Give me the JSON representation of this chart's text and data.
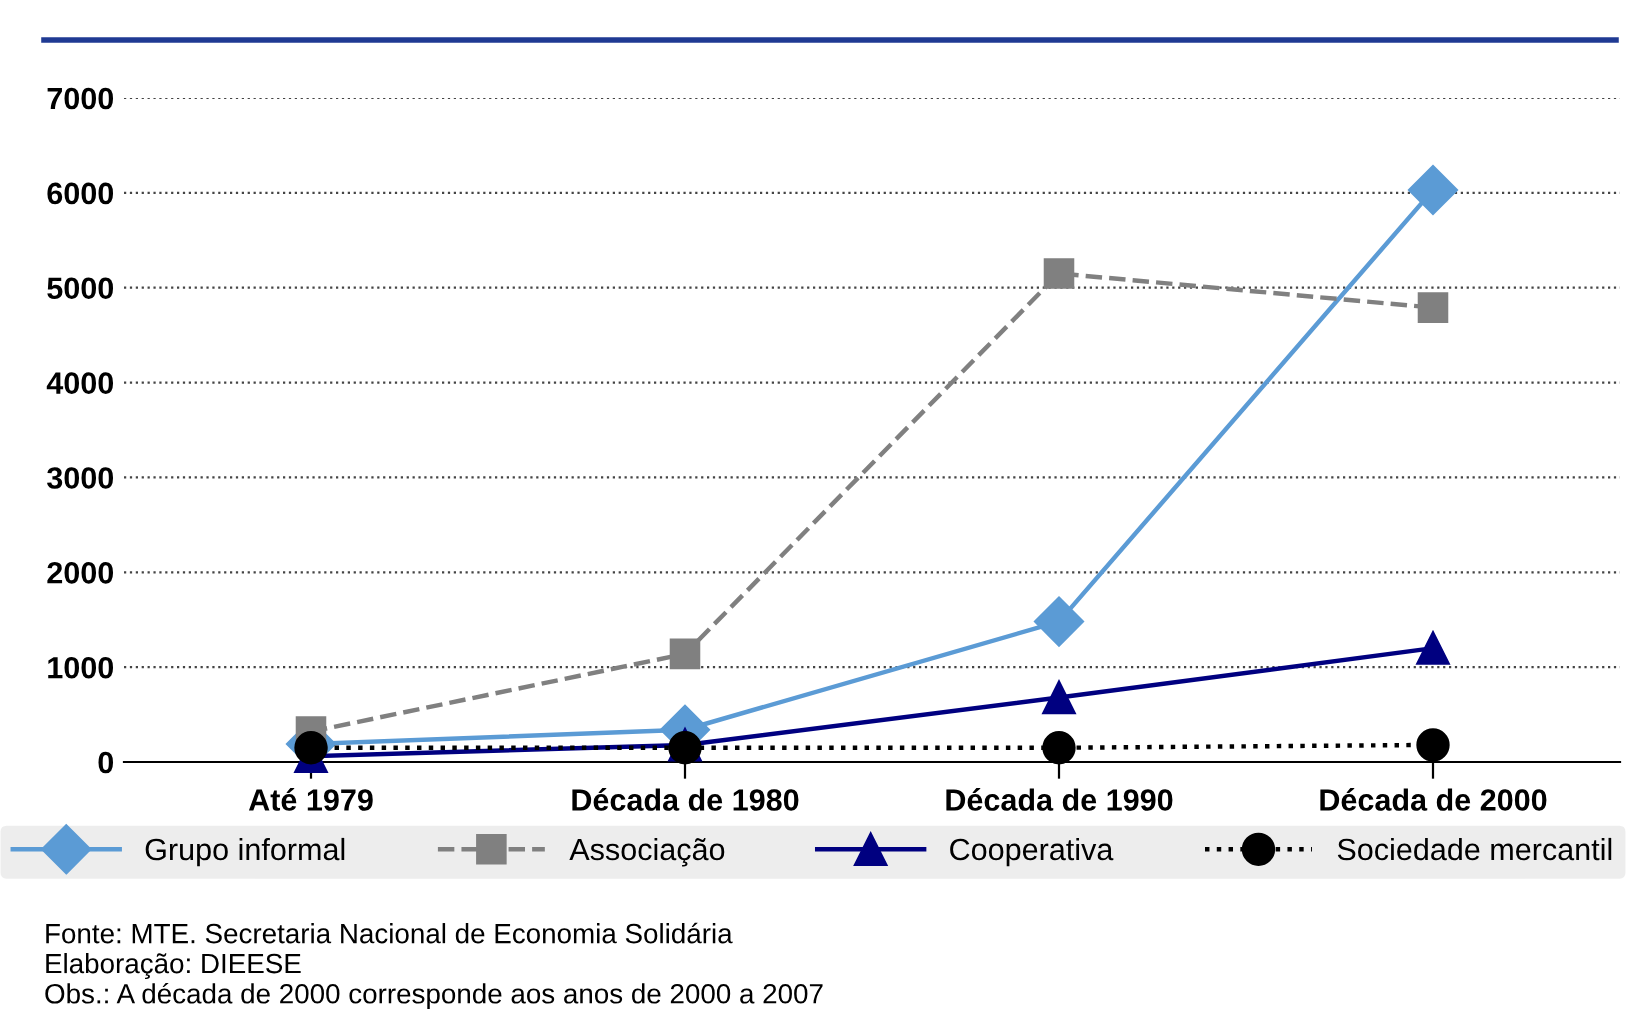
{
  "chart_data": {
    "type": "line",
    "categories": [
      "Até 1979",
      "Década de 1980",
      "Década de 1990",
      "Década de 2000"
    ],
    "series": [
      {
        "name": "Grupo informal",
        "color": "#5b9bd5",
        "values": [
          190,
          340,
          1480,
          6030
        ],
        "marker": "diamond",
        "line_style": "solid"
      },
      {
        "name": "Associação",
        "color": "#808080",
        "values": [
          320,
          1140,
          5150,
          4790
        ],
        "marker": "square",
        "line_style": "dashed"
      },
      {
        "name": "Cooperativa",
        "color": "#000080",
        "values": [
          60,
          180,
          680,
          1200
        ],
        "marker": "triangle",
        "line_style": "solid"
      },
      {
        "name": "Sociedade mercantil",
        "color": "#000000",
        "values": [
          150,
          150,
          150,
          180
        ],
        "marker": "circle",
        "line_style": "dotted"
      }
    ],
    "ylim": [
      0,
      7000
    ],
    "yticks": [
      0,
      1000,
      2000,
      3000,
      4000,
      5000,
      6000,
      7000
    ],
    "grid": "y",
    "legend": "bottom",
    "annotations": [
      "Fonte: MTE. Secretaria Nacional de Economia Solidária",
      "Elaboração: DIEESE",
      "Obs.: A década de 2000 corresponde aos anos de 2000 a 2007"
    ]
  }
}
